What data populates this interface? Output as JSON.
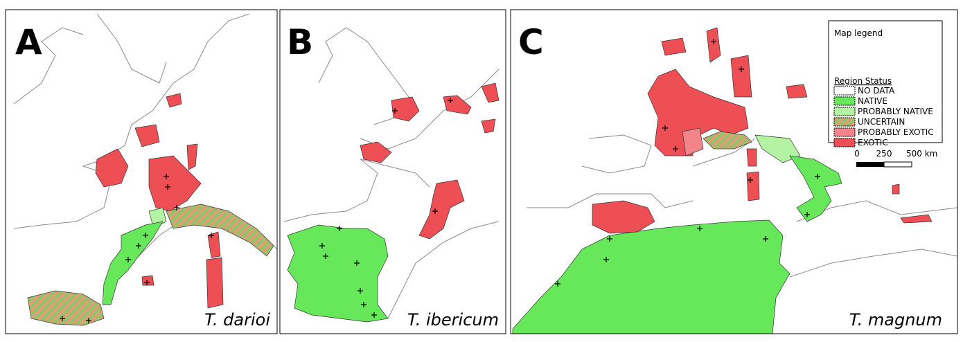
{
  "panels": [
    {
      "label": "A",
      "species": "T. darioi"
    },
    {
      "label": "B",
      "species": "T. ibericum"
    },
    {
      "label": "C",
      "species": "T. magnum"
    }
  ],
  "legend": {
    "title": "Map legend",
    "subtitle": "Region Status",
    "items": [
      {
        "label": "NO DATA",
        "color": "#ffffff"
      },
      {
        "label": "NATIVE",
        "color": "#66e85a"
      },
      {
        "label": "PROBABLY NATIVE",
        "color": "#b4f2a4"
      },
      {
        "label": "UNCERTAIN",
        "color": "#d9a07a",
        "hatch": "#7fcf5e"
      },
      {
        "label": "PROBABLY EXOTIC",
        "color": "#f2848a"
      },
      {
        "label": "EXOTIC",
        "color": "#ee4f55"
      }
    ]
  },
  "scale_bar": {
    "labels": [
      "0",
      "250",
      "500 km"
    ]
  }
}
